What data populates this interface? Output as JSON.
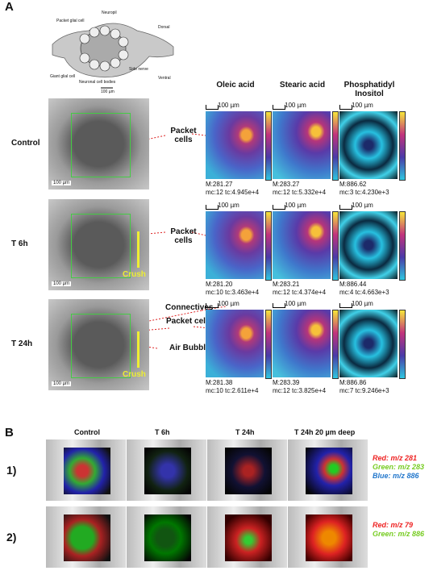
{
  "panel_a": {
    "label": "A",
    "diagram": {
      "labels": [
        "Neuropil",
        "Packet glial cell",
        "Dorsal",
        "Side nerve",
        "Giant glial cell",
        "Neuronal cell bodies",
        "Ventral"
      ],
      "scale": "100 µm"
    },
    "columns": [
      "Oleic acid",
      "Stearic acid",
      "Phosphatidyl Inositol"
    ],
    "rows": [
      {
        "label": "Control",
        "annotations": [
          "Packet cells"
        ],
        "scale": "100 µm",
        "images": [
          {
            "scale": "100 µm",
            "caption": [
              "M:281.27",
              "mc:12 tc:4.945e+4"
            ]
          },
          {
            "scale": "100 µm",
            "caption": [
              "M:283.27",
              "mc:12 tc:5.332e+4"
            ]
          },
          {
            "scale": "100 µm",
            "caption": [
              "M:886.62",
              "mc:3 tc:4.230e+3"
            ]
          }
        ]
      },
      {
        "label": "T 6h",
        "annotations": [
          "Packet cells"
        ],
        "scale": "100 µm",
        "crush": "Crush",
        "images": [
          {
            "scale": "100 µm",
            "caption": [
              "M:281.20",
              "mc:10 tc:3.463e+4"
            ]
          },
          {
            "scale": "100 µm",
            "caption": [
              "M:283.21",
              "mc:12 tc:4.374e+4"
            ]
          },
          {
            "scale": "100 µm",
            "caption": [
              "M:886.44",
              "mc:4 tc:4.663e+3"
            ]
          }
        ]
      },
      {
        "label": "T 24h",
        "annotations": [
          "Connectives",
          "Packet cell",
          "Air Bubble"
        ],
        "scale": "100 µm",
        "crush": "Crush",
        "images": [
          {
            "scale": "100 µm",
            "caption": [
              "M:281.38",
              "mc:10 tc:2.611e+4"
            ]
          },
          {
            "scale": "100 µm",
            "caption": [
              "M:283.39",
              "mc:12 tc:3.825e+4"
            ]
          },
          {
            "scale": "100 µm",
            "caption": [
              "M:886.86",
              "mc:7 tc:9.246e+3"
            ]
          }
        ]
      }
    ]
  },
  "panel_b": {
    "label": "B",
    "columns": [
      "Control",
      "T 6h",
      "T 24h",
      "T 24h 20 µm deep"
    ],
    "rows": [
      {
        "label": "1)",
        "legend": [
          "Red: m/z 281",
          "Green: m/z 283",
          "Blue: m/z 886"
        ]
      },
      {
        "label": "2)",
        "legend": [
          "Red: m/z 79",
          "Green: m/z 886"
        ]
      }
    ]
  }
}
